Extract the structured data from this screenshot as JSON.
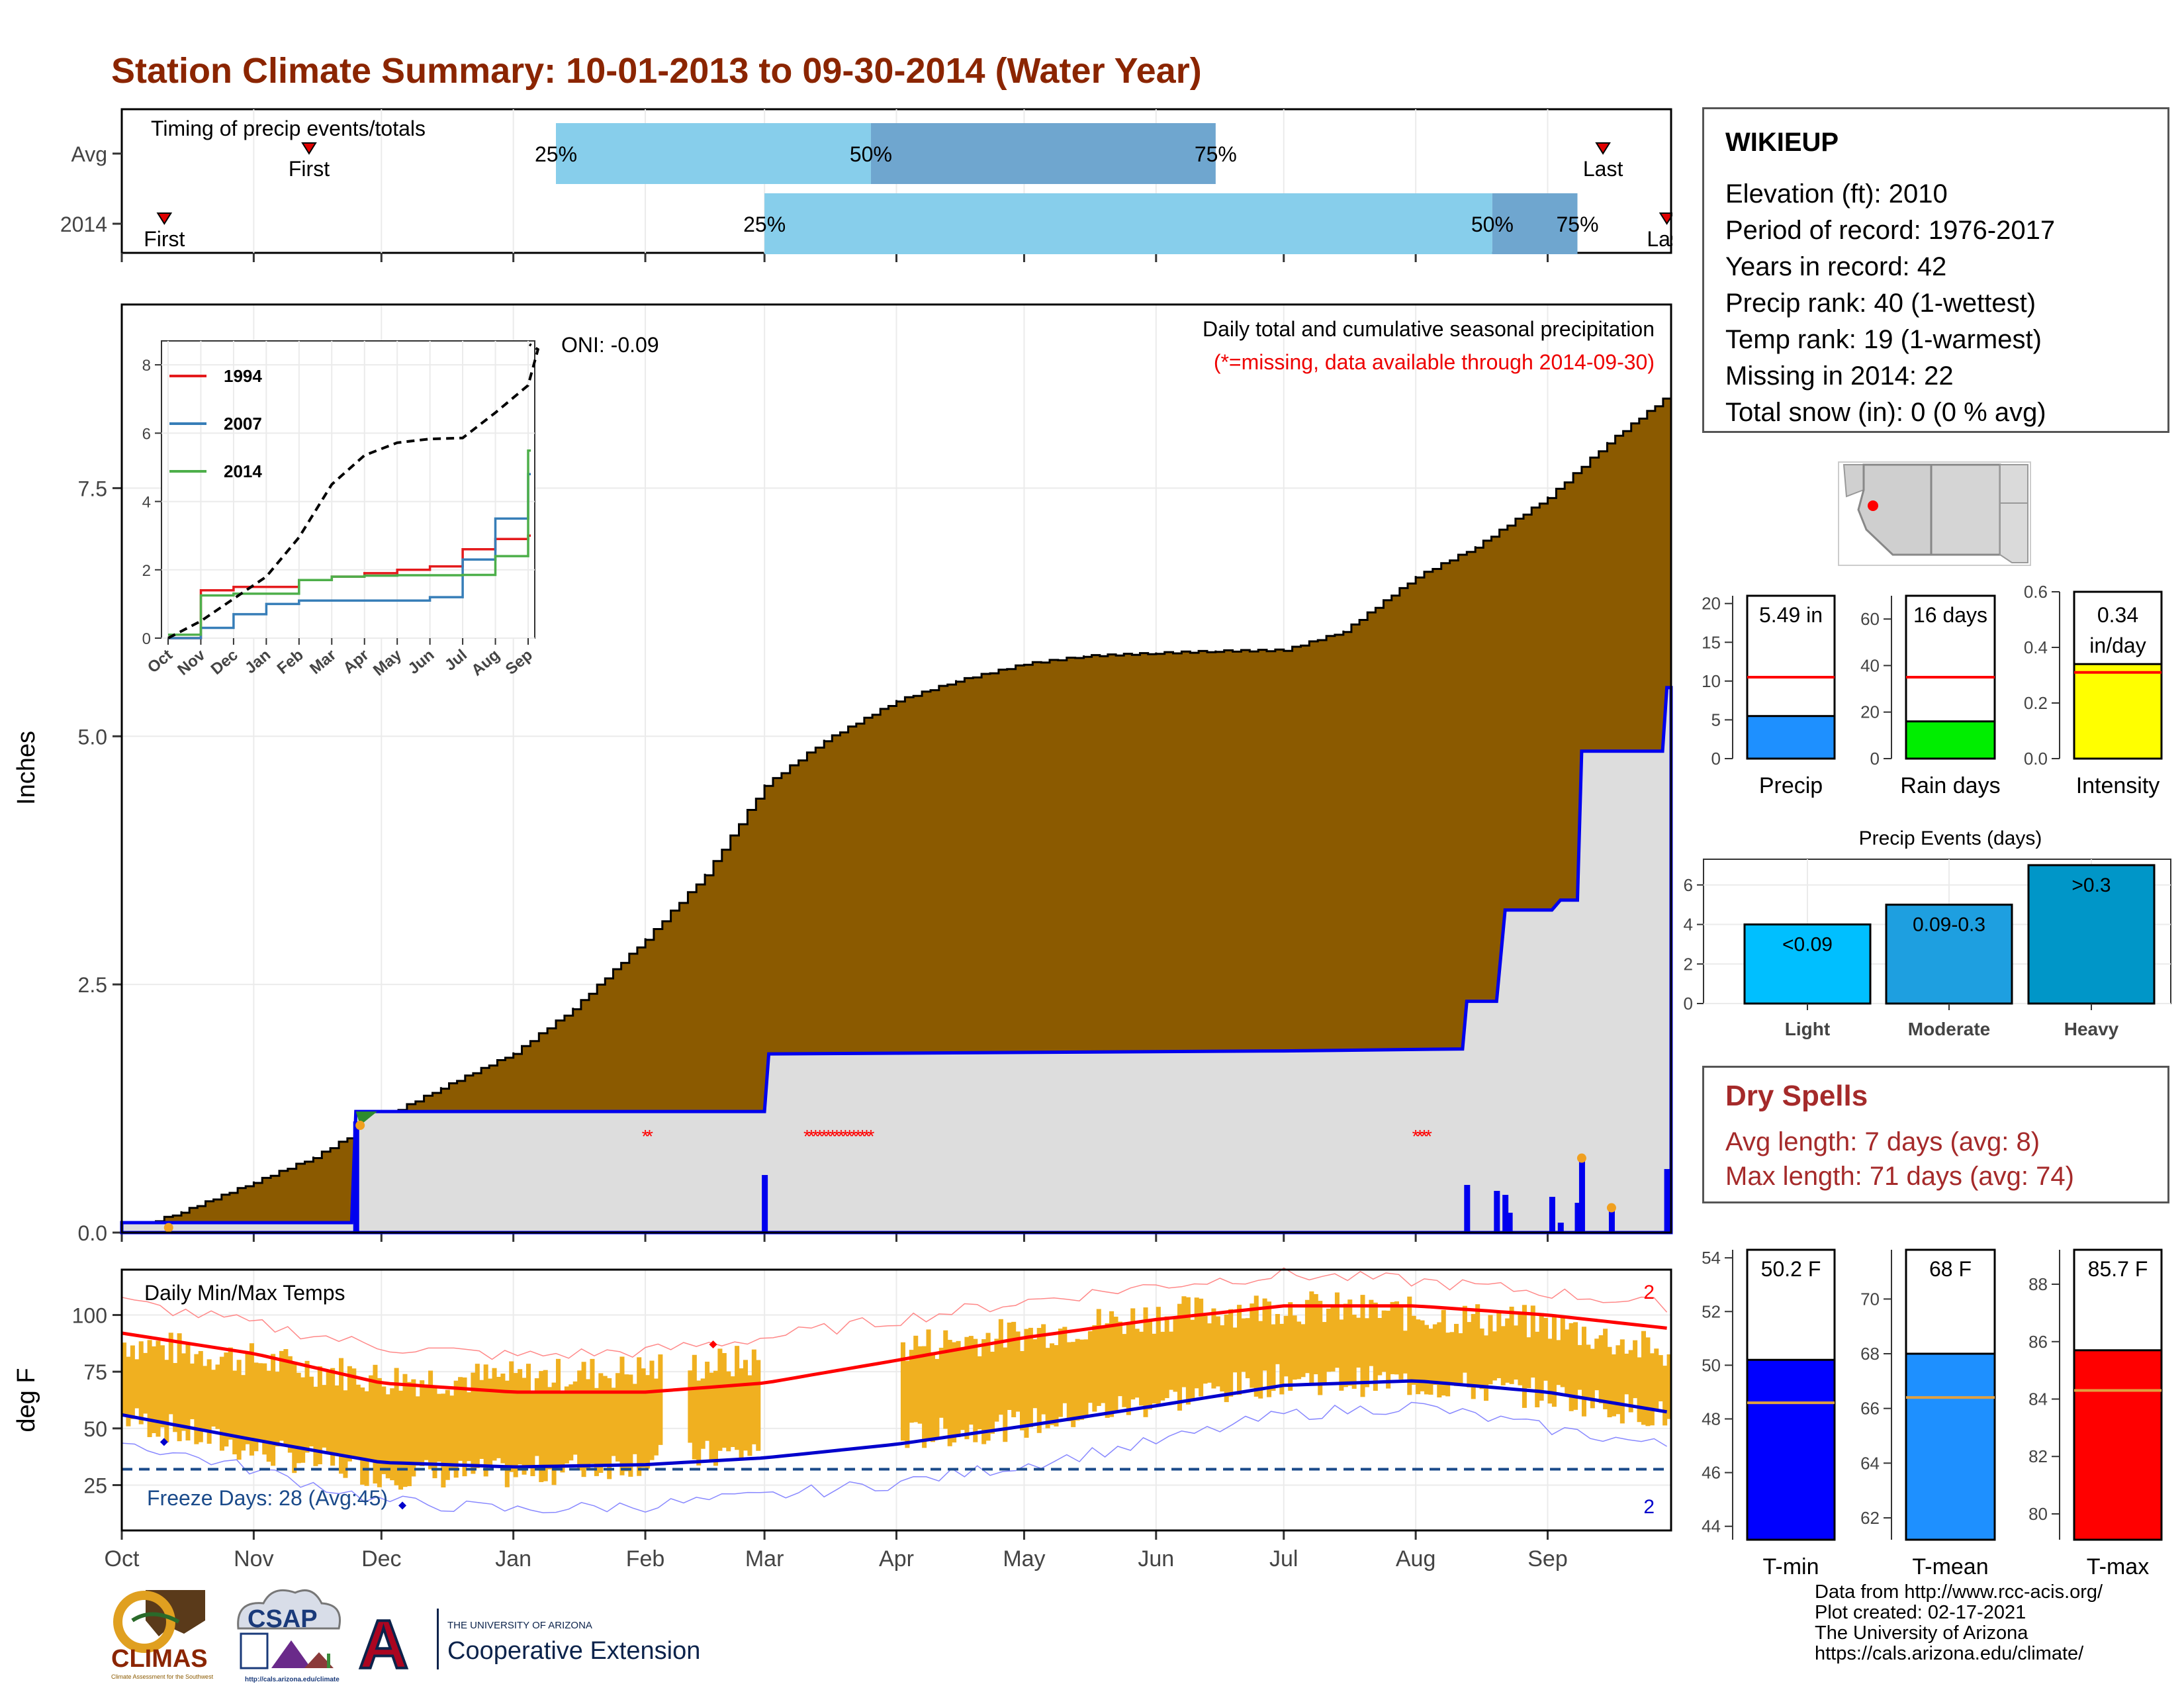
{
  "title": "Station Climate Summary: 10-01-2013 to 09-30-2014 (Water Year)",
  "station": {
    "name": "WIKIEUP",
    "lines": [
      "Elevation (ft): 2010",
      "Period of record: 1976-2017",
      "Years in record: 42",
      "Precip rank: 40 (1-wettest)",
      "Temp rank: 19 (1-warmest)",
      "Missing in 2014: 22",
      "Total snow (in): 0 (0 % avg)"
    ]
  },
  "colors": {
    "title": "#8b2500",
    "cumulative_fill": "#8b5a00",
    "missing_fill": "#dddddd",
    "daily_bar": "#0000ee",
    "temp_range": "#f0b020",
    "tmax_line": "#ff0000",
    "tmin_line": "#0000cc",
    "light_blue": "#87ceeb",
    "mid_blue": "#6fa6cf",
    "dry_text": "#a52a2a"
  },
  "timing_panel": {
    "title": "Timing of precip events/totals",
    "rows": [
      {
        "label": "Avg",
        "first_label": "First",
        "first_date": "2013-11-14",
        "q25_label": "25%",
        "q25_date": "2014-01-11",
        "q50_label": "50%",
        "q50_date": "2014-03-26",
        "q75_label": "75%",
        "q75_date": "2014-06-15",
        "last_label": "Last",
        "last_date": "2014-09-14"
      },
      {
        "label": "2014",
        "first_label": "First",
        "first_date": "2013-10-11",
        "q25_label": "25%",
        "q25_date": "2014-03-01",
        "q50_label": "50%",
        "q50_date": "2014-08-19",
        "q75_label": "75%",
        "q75_date": "2014-09-08",
        "last_label": "Last",
        "last_date": "2014-09-29"
      }
    ]
  },
  "precip_panel": {
    "ylabel": "Inches",
    "note_title": "Daily total and cumulative seasonal precipitation",
    "note_missing": "(*=missing, data available through 2014-09-30)",
    "oni_label": "ONI: -0.09",
    "yticks": [
      "0.0",
      "2.5",
      "5.0",
      "7.5"
    ]
  },
  "temp_panel": {
    "title": "Daily Min/Max Temps",
    "ylabel": "deg F",
    "yticks": [
      "25",
      "50",
      "75",
      "100"
    ],
    "freeze_label": "Freeze Days: 28 (Avg:45)",
    "tmax_record_count": "2",
    "tmin_record_count": "2"
  },
  "months": [
    "Oct",
    "Nov",
    "Dec",
    "Jan",
    "Feb",
    "Mar",
    "Apr",
    "May",
    "Jun",
    "Jul",
    "Aug",
    "Sep"
  ],
  "inset": {
    "yticks": [
      "0",
      "2",
      "4",
      "6",
      "8"
    ],
    "xticks": [
      "Oct",
      "Nov",
      "Dec",
      "Jan",
      "Feb",
      "Mar",
      "Apr",
      "May",
      "Jun",
      "Jul",
      "Aug",
      "Sep"
    ],
    "legend": [
      "1994",
      "2007",
      "2014"
    ]
  },
  "bar_precip": {
    "value_label": "5.49 in",
    "xlabel": "Precip",
    "yticks": [
      "0",
      "5",
      "10",
      "15",
      "20"
    ]
  },
  "bar_raindays": {
    "value_label": "16 days",
    "xlabel": "Rain days",
    "yticks": [
      "0",
      "20",
      "40",
      "60"
    ]
  },
  "bar_intensity": {
    "value_label": "0.34 in/day",
    "value_line1": "0.34",
    "value_line2": "in/day",
    "xlabel": "Intensity",
    "yticks": [
      "0.0",
      "0.2",
      "0.4",
      "0.6"
    ]
  },
  "events_panel": {
    "title": "Precip Events (days)",
    "yticks": [
      "0",
      "2",
      "4",
      "6"
    ],
    "categories": [
      "Light",
      "Moderate",
      "Heavy"
    ],
    "labels": [
      "<0.09",
      "0.09-0.3",
      ">0.3"
    ]
  },
  "dry_spells": {
    "title": "Dry Spells",
    "avg_line": "Avg length: 7 days (avg: 8)",
    "max_line": "Max length: 71 days (avg: 74)"
  },
  "bar_tmin": {
    "value_label": "50.2 F",
    "xlabel": "T-min",
    "yticks": [
      "44",
      "46",
      "48",
      "50",
      "52",
      "54"
    ]
  },
  "bar_tmean": {
    "value_label": "68 F",
    "xlabel": "T-mean",
    "yticks": [
      "62",
      "64",
      "66",
      "68",
      "70"
    ]
  },
  "bar_tmax": {
    "value_label": "85.7 F",
    "xlabel": "T-max",
    "yticks": [
      "80",
      "82",
      "84",
      "86",
      "88"
    ]
  },
  "credits": [
    "Data from http://www.rcc-acis.org/",
    "Plot created: 02-17-2021",
    "The University of Arizona",
    "https://cals.arizona.edu/climate/"
  ],
  "logos": {
    "climas": "CLIMAS",
    "climas_sub": "Climate Assessment for the Southwest",
    "csap": "CSAP",
    "csap_url": "http://cals.arizona.edu/climate",
    "ua_letter": "A",
    "ua_small": "THE UNIVERSITY OF ARIZONA",
    "ua_big": "Cooperative Extension"
  },
  "chart_data": [
    {
      "type": "area",
      "title": "Daily total and cumulative seasonal precipitation",
      "ylabel": "Inches",
      "ylim": [
        0,
        9.35
      ],
      "xlim": [
        "2013-10-01",
        "2014-09-30"
      ],
      "series": [
        {
          "name": "",
          "role": "cumulative-average",
          "x": [
            "2013-10-01",
            "2013-10-15",
            "2013-11-01",
            "2013-11-15",
            "2013-12-01",
            "2013-12-15",
            "2014-01-01",
            "2014-01-15",
            "2014-02-01",
            "2014-02-15",
            "2014-03-01",
            "2014-03-15",
            "2014-04-01",
            "2014-04-15",
            "2014-05-01",
            "2014-05-15",
            "2014-06-01",
            "2014-06-15",
            "2014-07-01",
            "2014-07-15",
            "2014-08-01",
            "2014-08-15",
            "2014-09-01",
            "2014-09-15",
            "2014-09-30"
          ],
          "y": [
            0.0,
            0.2,
            0.5,
            0.75,
            1.15,
            1.45,
            1.8,
            2.25,
            2.95,
            3.6,
            4.5,
            4.95,
            5.35,
            5.55,
            5.72,
            5.8,
            5.83,
            5.85,
            5.86,
            6.05,
            6.6,
            6.9,
            7.4,
            7.95,
            8.45
          ]
        },
        {
          "name": "",
          "role": "cumulative-2014",
          "x": [
            "2013-10-01",
            "2013-11-24",
            "2013-11-25",
            "2014-03-01",
            "2014-03-02",
            "2014-07-01",
            "2014-08-12",
            "2014-08-13",
            "2014-08-20",
            "2014-08-22",
            "2014-09-02",
            "2014-09-04",
            "2014-09-08",
            "2014-09-09",
            "2014-09-28",
            "2014-09-29",
            "2014-09-30"
          ],
          "y": [
            0.1,
            0.1,
            1.22,
            1.22,
            1.8,
            1.83,
            1.85,
            2.33,
            2.33,
            3.25,
            3.25,
            3.35,
            3.35,
            4.85,
            4.85,
            5.49,
            5.49
          ]
        },
        {
          "name": "",
          "role": "daily-precip",
          "x": [
            "2013-11-25",
            "2014-03-01",
            "2014-08-13",
            "2014-08-20",
            "2014-08-22",
            "2014-08-23",
            "2014-09-02",
            "2014-09-04",
            "2014-09-08",
            "2014-09-09",
            "2014-09-16",
            "2014-09-29"
          ],
          "y": [
            1.12,
            0.58,
            0.48,
            0.42,
            0.38,
            0.2,
            0.36,
            0.1,
            0.3,
            0.75,
            0.25,
            0.64
          ]
        }
      ],
      "missing_dates": [
        "2014-02-01",
        "2014-02-02",
        "2014-03-11",
        "2014-03-12",
        "2014-03-13",
        "2014-03-14",
        "2014-03-15",
        "2014-03-16",
        "2014-03-17",
        "2014-03-18",
        "2014-03-19",
        "2014-03-20",
        "2014-03-21",
        "2014-03-22",
        "2014-03-23",
        "2014-03-24",
        "2014-03-25",
        "2014-03-26",
        "2014-08-01",
        "2014-08-02",
        "2014-08-03",
        "2014-08-04"
      ]
    },
    {
      "type": "line",
      "title": "",
      "ylim": [
        0,
        8.7
      ],
      "x": [
        "Oct",
        "Nov",
        "Dec",
        "Jan",
        "Feb",
        "Mar",
        "Apr",
        "May",
        "Jun",
        "Jul",
        "Aug",
        "Sep"
      ],
      "series": [
        {
          "name": "1994",
          "color": "#e41a1c",
          "values": [
            0.0,
            1.4,
            1.5,
            1.5,
            1.7,
            1.8,
            1.9,
            2.0,
            2.1,
            2.6,
            2.9,
            3.0
          ]
        },
        {
          "name": "2007",
          "color": "#377eb8",
          "values": [
            0.0,
            0.3,
            0.7,
            1.0,
            1.1,
            1.1,
            1.1,
            1.1,
            1.2,
            2.3,
            3.5,
            4.8
          ]
        },
        {
          "name": "2014",
          "color": "#4daf4a",
          "values": [
            0.1,
            1.25,
            1.3,
            1.3,
            1.7,
            1.8,
            1.83,
            1.84,
            1.84,
            1.85,
            2.4,
            5.49
          ]
        },
        {
          "name": "",
          "role": "average",
          "color": "#000000",
          "values": [
            0.0,
            0.5,
            1.15,
            1.8,
            2.95,
            4.5,
            5.35,
            5.72,
            5.83,
            5.86,
            6.6,
            7.4
          ]
        }
      ]
    },
    {
      "type": "bar",
      "categories": [
        "Precip"
      ],
      "values": [
        5.49
      ],
      "reference": 10.5,
      "ylim": [
        0,
        21
      ],
      "color": "#1e90ff"
    },
    {
      "type": "bar",
      "categories": [
        "Rain days"
      ],
      "values": [
        16
      ],
      "reference": 35,
      "ylim": [
        0,
        70
      ],
      "color": "#00ee00"
    },
    {
      "type": "bar",
      "categories": [
        "Intensity"
      ],
      "values": [
        0.34
      ],
      "reference": 0.31,
      "ylim": [
        0,
        0.6
      ],
      "color": "#ffff00"
    },
    {
      "type": "bar",
      "title": "Precip Events (days)",
      "categories": [
        "Light",
        "Moderate",
        "Heavy"
      ],
      "values": [
        4,
        5,
        7
      ],
      "ylim": [
        0,
        7.3
      ],
      "colors": [
        "#00bfff",
        "#1e9fe0",
        "#0096c8"
      ]
    },
    {
      "type": "line",
      "title": "Daily Min/Max Temps",
      "ylabel": "deg F",
      "ylim": [
        5,
        120
      ],
      "x": [
        "2013-10-01",
        "2013-11-01",
        "2013-12-01",
        "2014-01-01",
        "2014-02-01",
        "2014-03-01",
        "2014-04-01",
        "2014-05-01",
        "2014-06-01",
        "2014-07-01",
        "2014-08-01",
        "2014-09-01",
        "2014-09-30"
      ],
      "series": [
        {
          "name": "",
          "role": "avg-tmax",
          "values": [
            92,
            83,
            70,
            66,
            66,
            70,
            80,
            90,
            98,
            104,
            104,
            100,
            94
          ]
        },
        {
          "name": "",
          "role": "avg-tmin",
          "values": [
            56,
            45,
            35,
            33,
            34,
            37,
            43,
            51,
            60,
            69,
            71,
            66,
            57
          ]
        },
        {
          "name": "",
          "role": "record-tmax",
          "values": [
            106,
            96,
            86,
            82,
            84,
            90,
            98,
            106,
            113,
            118,
            115,
            110,
            104
          ]
        },
        {
          "name": "",
          "role": "record-tmin",
          "values": [
            44,
            32,
            18,
            14,
            16,
            20,
            26,
            34,
            44,
            56,
            60,
            50,
            42
          ]
        },
        {
          "name": "",
          "role": "daily-high-2014",
          "values": [
            88,
            80,
            72,
            72,
            76,
            80,
            86,
            92,
            100,
            104,
            100,
            96,
            82
          ]
        },
        {
          "name": "",
          "role": "daily-low-2014",
          "values": [
            55,
            40,
            30,
            30,
            36,
            40,
            46,
            52,
            62,
            72,
            70,
            65,
            55
          ]
        }
      ],
      "freeze_threshold": 32
    },
    {
      "type": "bar",
      "categories": [
        "T-min"
      ],
      "values": [
        50.2
      ],
      "reference": 48.6,
      "ylim": [
        43.5,
        54.3
      ],
      "color": "#0000ff"
    },
    {
      "type": "bar",
      "categories": [
        "T-mean"
      ],
      "values": [
        68
      ],
      "reference": 66.4,
      "ylim": [
        61.2,
        71.8
      ],
      "color": "#1e90ff"
    },
    {
      "type": "bar",
      "categories": [
        "T-max"
      ],
      "values": [
        85.7
      ],
      "reference": 84.3,
      "ylim": [
        79.1,
        89.2
      ],
      "color": "#ff0000"
    }
  ]
}
